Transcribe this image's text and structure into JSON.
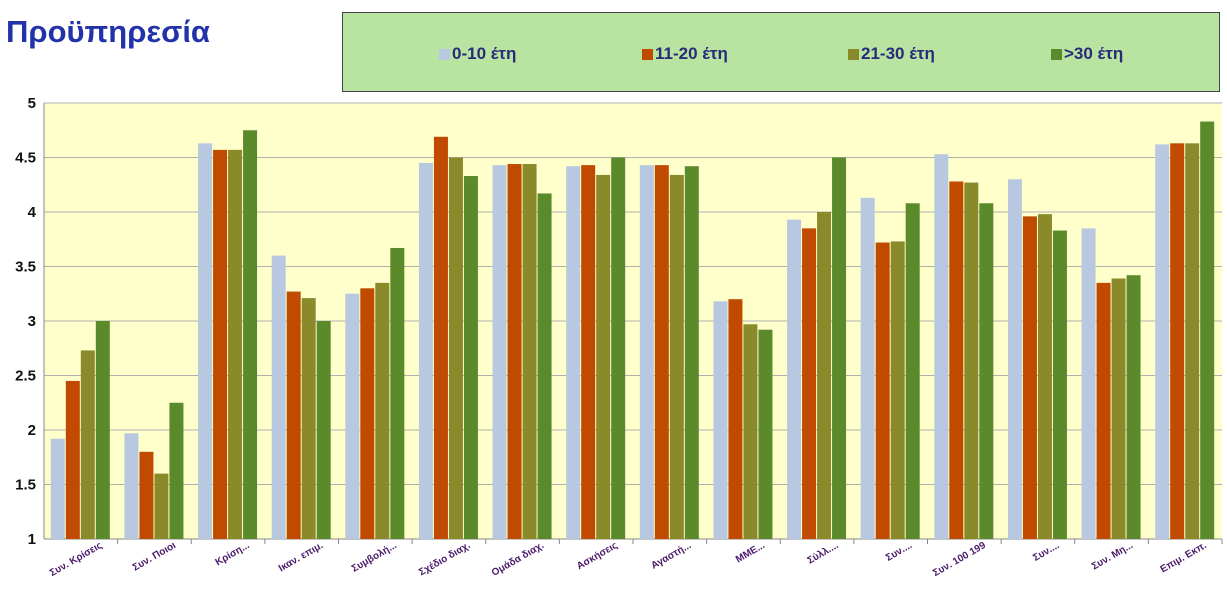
{
  "page_title": "Προϋπηρεσία",
  "chart_data": {
    "type": "bar",
    "title": "Προϋπηρεσία",
    "xlabel": "",
    "ylabel": "",
    "ylim": [
      1,
      5
    ],
    "yticks": [
      "1",
      "1.5",
      "2",
      "2.5",
      "3",
      "3.5",
      "4",
      "4.5",
      "5"
    ],
    "grid": true,
    "legend_position": "top",
    "categories": [
      "Συν. Κρίσεις",
      "Συν. Ποιοι",
      "Κρίση...",
      "Ικαν. επιμ.",
      "Συμβολή...",
      "Σχέδιο διαχ.",
      "Ομάδα διαχ.",
      "Ασκήσεις",
      "Αγαστή...",
      "ΜΜΕ...",
      "Σύλλ....",
      "Συν....",
      "Συν. 100 199",
      "Συν....",
      "Συν. Μη...",
      "Επιμ. Εκπ."
    ],
    "series": [
      {
        "name": "0-10 έτη",
        "color": "#b8c8e0",
        "values": [
          1.92,
          1.97,
          4.63,
          3.6,
          3.25,
          4.45,
          4.43,
          4.42,
          4.43,
          3.18,
          3.93,
          4.13,
          4.53,
          4.3,
          3.85,
          4.62
        ]
      },
      {
        "name": "11-20 έτη",
        "color": "#c04a00",
        "values": [
          2.45,
          1.8,
          4.57,
          3.27,
          3.3,
          4.69,
          4.44,
          4.43,
          4.43,
          3.2,
          3.85,
          3.72,
          4.28,
          3.96,
          3.35,
          4.63
        ]
      },
      {
        "name": "21-30 έτη",
        "color": "#8a8a2a",
        "values": [
          2.73,
          1.6,
          4.57,
          3.21,
          3.35,
          4.5,
          4.44,
          4.34,
          4.34,
          2.97,
          4.0,
          3.73,
          4.27,
          3.98,
          3.39,
          4.63
        ]
      },
      {
        "name": ">30 έτη",
        "color": "#5a8a2a",
        "values": [
          3.0,
          2.25,
          4.75,
          3.0,
          3.67,
          4.33,
          4.17,
          4.5,
          4.42,
          2.92,
          4.5,
          4.08,
          4.08,
          3.83,
          3.42,
          4.83
        ]
      }
    ]
  }
}
